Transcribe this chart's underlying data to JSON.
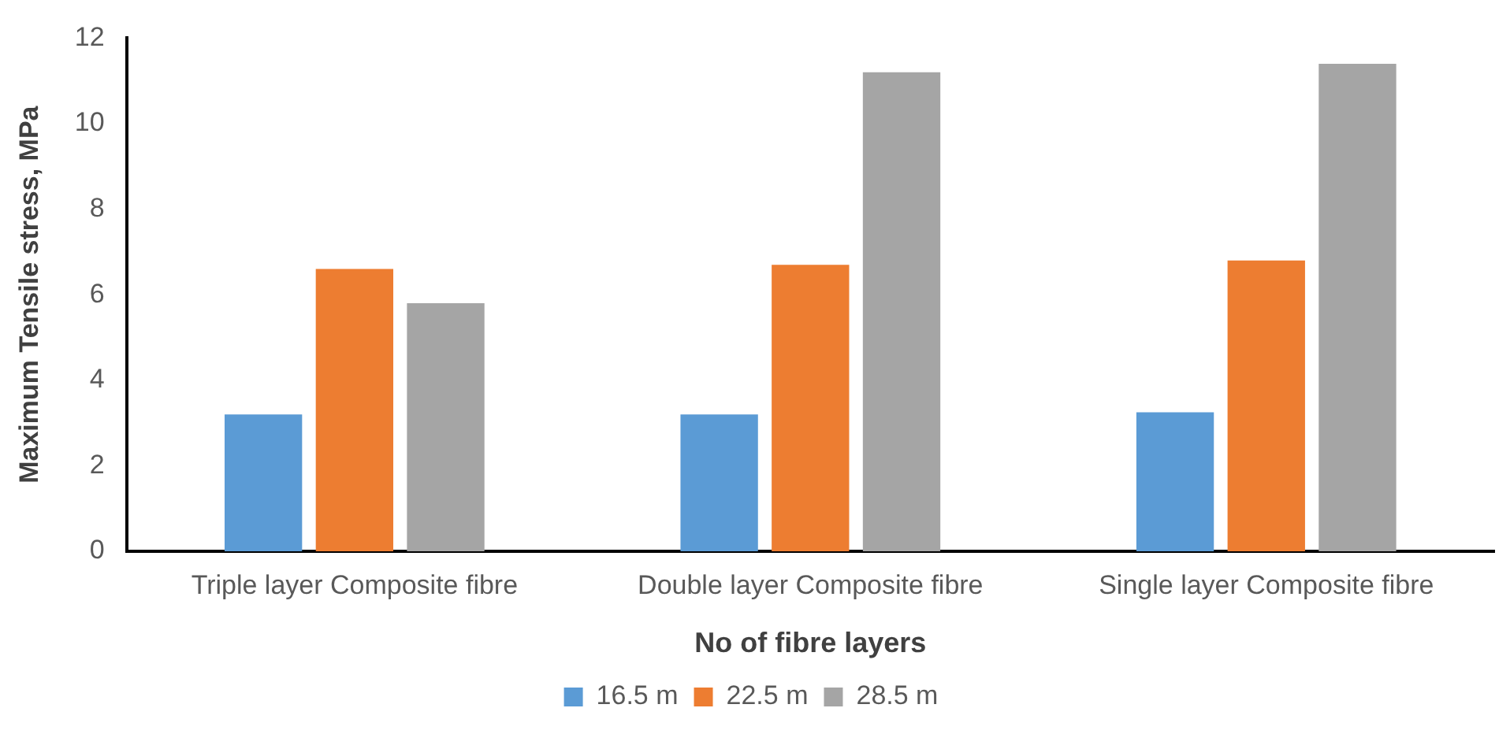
{
  "chart_data": {
    "type": "bar",
    "xlabel": "No of fibre layers",
    "ylabel": "Maximum Tensile stress, MPa",
    "categories": [
      "Triple layer Composite fibre",
      "Double layer Composite fibre",
      "Single layer Composite fibre"
    ],
    "series": [
      {
        "name": "16.5 m",
        "color": "#5b9bd5",
        "values": [
          3.2,
          3.2,
          3.25
        ]
      },
      {
        "name": "22.5 m",
        "color": "#ed7d31",
        "values": [
          6.6,
          6.7,
          6.8
        ]
      },
      {
        "name": "28.5 m",
        "color": "#a5a5a5",
        "values": [
          5.8,
          11.2,
          11.4
        ]
      }
    ],
    "ylim": [
      0,
      12
    ],
    "yticks": [
      0,
      2,
      4,
      6,
      8,
      10,
      12
    ],
    "grid": false,
    "legend": "bottom"
  }
}
